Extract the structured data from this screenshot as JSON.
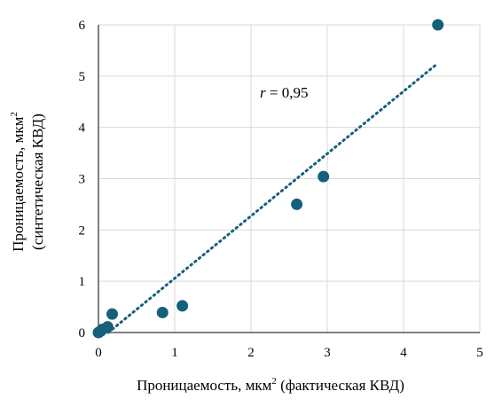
{
  "chart_data": {
    "type": "scatter",
    "title": "",
    "xlabel": "Проницаемость, мкм",
    "xlabel_sup": "2",
    "xlabel_suffix": " (фактическая КВД)",
    "ylabel_line1": "Проницаемость, мкм",
    "ylabel_sup": "2",
    "ylabel_line2": "(синтетическая КВД)",
    "xlim": [
      0,
      5
    ],
    "ylim": [
      0,
      6
    ],
    "x_ticks": [
      "0",
      "1",
      "2",
      "3",
      "4",
      "5"
    ],
    "y_ticks": [
      "0",
      "1",
      "2",
      "3",
      "4",
      "5",
      "6"
    ],
    "grid": true,
    "annotation": {
      "italic": "r",
      "text": " = 0,95"
    },
    "series": [
      {
        "points": [
          {
            "x": 0.0,
            "y": 0.0
          },
          {
            "x": 0.03,
            "y": 0.03
          },
          {
            "x": 0.05,
            "y": 0.06
          },
          {
            "x": 0.12,
            "y": 0.11
          },
          {
            "x": 0.18,
            "y": 0.36
          },
          {
            "x": 0.84,
            "y": 0.39
          },
          {
            "x": 1.1,
            "y": 0.52
          },
          {
            "x": 2.6,
            "y": 2.5
          },
          {
            "x": 2.95,
            "y": 3.04
          },
          {
            "x": 4.45,
            "y": 6.0
          }
        ]
      }
    ],
    "trendline": {
      "type": "linear",
      "style": "dotted",
      "x": [
        0.13,
        4.45
      ],
      "y": [
        0.0,
        5.25
      ]
    },
    "colors": {
      "points": "#15607a",
      "trendline": "#15607a",
      "grid": "#d9d9d9",
      "axis": "#000000"
    }
  }
}
